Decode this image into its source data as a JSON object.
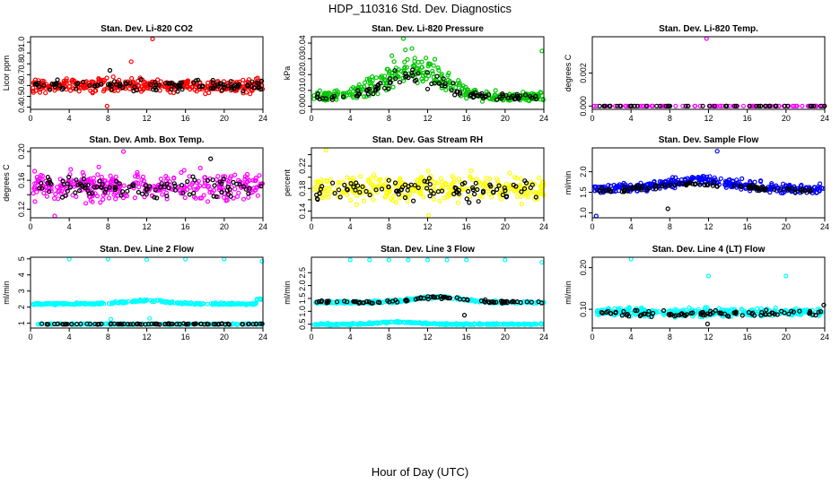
{
  "figure": {
    "title": "HDP_110316  Std. Dev. Diagnostics",
    "xlabel": "Hour of Day (UTC)"
  },
  "chart_data": [
    {
      "type": "scatter",
      "title": "Stan. Dev. Li-820 CO2",
      "ylabel": "Licor ppm",
      "xlim": [
        0,
        24
      ],
      "ylim": [
        0.38,
        1.05
      ],
      "xticks": [
        0,
        4,
        8,
        12,
        16,
        20,
        24
      ],
      "yticks": [
        0.4,
        0.5,
        0.6,
        0.7,
        0.8,
        0.9,
        1.0
      ],
      "ytick_labels": [
        "0.4",
        "0.5",
        "0.6",
        "0.7",
        "0.8",
        "0.9",
        "1.0"
      ],
      "color": "#ff0000",
      "series": [
        {
          "name": "main",
          "color": "#ff0000",
          "n": 360,
          "base": 0.6,
          "spread": 0.06,
          "x": [
            0.2,
            24
          ]
        },
        {
          "name": "hourly",
          "color": "#000000",
          "n": 110,
          "base": 0.6,
          "spread": 0.05,
          "x": [
            0.5,
            24
          ]
        }
      ],
      "outliers": [
        {
          "x": 12.6,
          "y": 1.03,
          "color": "#ff0000"
        },
        {
          "x": 10.4,
          "y": 0.82,
          "color": "#ff0000"
        },
        {
          "x": 7.9,
          "y": 0.41,
          "color": "#ff0000"
        },
        {
          "x": 8.2,
          "y": 0.74,
          "color": "#000000"
        }
      ]
    },
    {
      "type": "scatter",
      "title": "Stan. Dev. Li-820 Pressure",
      "ylabel": "kPa",
      "xlim": [
        0,
        24
      ],
      "ylim": [
        -0.002,
        0.044
      ],
      "xticks": [
        0,
        4,
        8,
        12,
        16,
        20,
        24
      ],
      "yticks": [
        0.0,
        0.01,
        0.02,
        0.03,
        0.04
      ],
      "ytick_labels": [
        "0.00",
        "0.01",
        "0.02",
        "0.03",
        "0.04"
      ],
      "color": "#00c800",
      "series": [
        {
          "name": "main",
          "color": "#00c800",
          "n": 330,
          "profile": "pressure",
          "x": [
            0.2,
            24
          ]
        },
        {
          "name": "hourly",
          "color": "#000000",
          "n": 100,
          "profile": "pressure_low",
          "x": [
            0.5,
            24
          ]
        }
      ],
      "outliers": [
        {
          "x": 9.5,
          "y": 0.043,
          "color": "#00c800"
        },
        {
          "x": 23.8,
          "y": 0.035,
          "color": "#00c800"
        },
        {
          "x": 8.3,
          "y": 0.032,
          "color": "#00c800"
        }
      ]
    },
    {
      "type": "scatter",
      "title": "Stan. Dev. Li-820 Temp.",
      "ylabel": "degrees C",
      "xlim": [
        0,
        24
      ],
      "ylim": [
        -0.0002,
        0.0042
      ],
      "xticks": [
        0,
        4,
        8,
        12,
        16,
        20,
        24
      ],
      "yticks": [
        0.0,
        0.002
      ],
      "ytick_labels": [
        "0.000",
        "0.002"
      ],
      "color": "#ff00ff",
      "series": [
        {
          "name": "main",
          "color": "#ff00ff",
          "n": 80,
          "base": 0.0,
          "spread": 0.0,
          "x": [
            0.3,
            24
          ]
        },
        {
          "name": "hourly",
          "color": "#000000",
          "n": 48,
          "base": 0.0,
          "spread": 0.0,
          "x": [
            0.5,
            24
          ]
        }
      ],
      "outliers": [
        {
          "x": 11.8,
          "y": 0.0041,
          "color": "#ff00ff"
        },
        {
          "x": 0.2,
          "y": 0.0,
          "color": "#ff00ff"
        }
      ]
    },
    {
      "type": "scatter",
      "title": "Stan. Dev. Amb. Box Temp.",
      "ylabel": "degrees C",
      "xlim": [
        0,
        24
      ],
      "ylim": [
        0.108,
        0.205
      ],
      "xticks": [
        0,
        4,
        8,
        12,
        16,
        20,
        24
      ],
      "yticks": [
        0.12,
        0.14,
        0.16,
        0.18,
        0.2
      ],
      "ytick_labels": [
        "0.12",
        "0.16",
        "0.20"
      ],
      "ytick_label_values": [
        0.12,
        0.16,
        0.2
      ],
      "color": "#ff00ff",
      "series": [
        {
          "name": "main",
          "color": "#ff00ff",
          "n": 340,
          "base": 0.152,
          "spread": 0.018,
          "x": [
            0.2,
            24
          ]
        },
        {
          "name": "hourly",
          "color": "#000000",
          "n": 100,
          "base": 0.15,
          "spread": 0.015,
          "x": [
            0.5,
            24
          ]
        }
      ],
      "outliers": [
        {
          "x": 9.6,
          "y": 0.2,
          "color": "#ff00ff"
        },
        {
          "x": 2.5,
          "y": 0.11,
          "color": "#ff00ff"
        },
        {
          "x": 18.6,
          "y": 0.19,
          "color": "#000000"
        }
      ]
    },
    {
      "type": "scatter",
      "title": "Stan. Dev. Gas Stream RH",
      "ylabel": "percent",
      "xlim": [
        0,
        24
      ],
      "ylim": [
        0.128,
        0.252
      ],
      "xticks": [
        0,
        4,
        8,
        12,
        16,
        20,
        24
      ],
      "yticks": [
        0.14,
        0.16,
        0.18,
        0.2,
        0.22,
        0.24
      ],
      "ytick_labels": [
        "0.14",
        "0.18",
        "0.22"
      ],
      "ytick_label_values": [
        0.14,
        0.18,
        0.22
      ],
      "color": "#ffff00",
      "series": [
        {
          "name": "main",
          "color": "#ffff00",
          "n": 330,
          "base": 0.18,
          "spread": 0.022,
          "x": [
            0.2,
            24
          ]
        },
        {
          "name": "hourly",
          "color": "#000000",
          "n": 95,
          "base": 0.178,
          "spread": 0.018,
          "x": [
            0.5,
            24
          ]
        }
      ],
      "outliers": [
        {
          "x": 1.5,
          "y": 0.248,
          "color": "#ffff00"
        },
        {
          "x": 12.1,
          "y": 0.132,
          "color": "#ffff00"
        }
      ]
    },
    {
      "type": "scatter",
      "title": "Stan. Dev. Sample Flow",
      "ylabel": "ml/min",
      "xlim": [
        0,
        24
      ],
      "ylim": [
        0.88,
        2.58
      ],
      "xticks": [
        0,
        4,
        8,
        12,
        16,
        20,
        24
      ],
      "yticks": [
        1.0,
        1.5,
        2.0
      ],
      "ytick_labels": [
        "1.0",
        "1.5",
        "2.0"
      ],
      "color": "#0000ff",
      "series": [
        {
          "name": "main",
          "color": "#0000ff",
          "n": 360,
          "profile": "flow",
          "x": [
            0.2,
            24
          ]
        },
        {
          "name": "hourly",
          "color": "#000000",
          "n": 95,
          "profile": "flow_low",
          "x": [
            0.5,
            24
          ]
        }
      ],
      "outliers": [
        {
          "x": 0.4,
          "y": 0.92,
          "color": "#0000ff"
        },
        {
          "x": 12.9,
          "y": 2.5,
          "color": "#0000ff"
        },
        {
          "x": 7.8,
          "y": 1.1,
          "color": "#000000"
        }
      ]
    },
    {
      "type": "scatter",
      "title": "Stan. Dev. Line 2 Flow",
      "ylabel": "ml/min",
      "xlim": [
        0,
        24
      ],
      "ylim": [
        0.7,
        5.1
      ],
      "xticks": [
        0,
        4,
        8,
        12,
        16,
        20,
        24
      ],
      "yticks": [
        1,
        2,
        3,
        4,
        5
      ],
      "ytick_labels": [
        "1",
        "2",
        "3",
        "4",
        "5"
      ],
      "color": "#00ffff",
      "series": [
        {
          "name": "upper",
          "color": "#00ffff",
          "n": 300,
          "profile": "line2_upper",
          "x": [
            0.3,
            24
          ]
        },
        {
          "name": "lower",
          "color": "#00ffff",
          "n": 220,
          "base": 0.95,
          "spread": 0.04,
          "x": [
            0.3,
            24
          ]
        },
        {
          "name": "hourly",
          "color": "#000000",
          "n": 90,
          "base": 0.95,
          "spread": 0.03,
          "x": [
            0.5,
            24
          ]
        }
      ],
      "outliers": [
        {
          "x": 4.0,
          "y": 5.0,
          "color": "#00ffff"
        },
        {
          "x": 8.0,
          "y": 5.0,
          "color": "#00ffff"
        },
        {
          "x": 12.0,
          "y": 4.95,
          "color": "#00ffff"
        },
        {
          "x": 16.0,
          "y": 5.05,
          "color": "#00ffff"
        },
        {
          "x": 20.0,
          "y": 5.0,
          "color": "#00ffff"
        },
        {
          "x": 23.9,
          "y": 4.85,
          "color": "#00ffff"
        },
        {
          "x": 8.3,
          "y": 1.25,
          "color": "#00ffff"
        },
        {
          "x": 12.3,
          "y": 1.3,
          "color": "#00ffff"
        }
      ]
    },
    {
      "type": "scatter",
      "title": "Stan. Dev. Line 3 Flow",
      "ylabel": "ml/min",
      "xlim": [
        0,
        24
      ],
      "ylim": [
        0.35,
        3.1
      ],
      "xticks": [
        0,
        4,
        8,
        12,
        16,
        20,
        24
      ],
      "yticks": [
        0.5,
        1.0,
        1.5,
        2.0,
        2.5
      ],
      "ytick_labels": [
        "0.5",
        "1.0",
        "1.5",
        "2.0",
        "2.5"
      ],
      "color": "#00ffff",
      "series": [
        {
          "name": "upper",
          "color": "#00ffff",
          "n": 300,
          "profile": "line3_upper",
          "x": [
            0.3,
            24
          ]
        },
        {
          "name": "lower",
          "color": "#00ffff",
          "n": 320,
          "profile": "line3_lower",
          "x": [
            0.3,
            24
          ]
        },
        {
          "name": "hourly",
          "color": "#000000",
          "n": 90,
          "profile": "line3_upper",
          "x": [
            0.5,
            24
          ]
        }
      ],
      "outliers": [
        {
          "x": 4.0,
          "y": 3.0,
          "color": "#00ffff"
        },
        {
          "x": 6.0,
          "y": 3.0,
          "color": "#00ffff"
        },
        {
          "x": 8.0,
          "y": 3.0,
          "color": "#00ffff"
        },
        {
          "x": 10.0,
          "y": 3.0,
          "color": "#00ffff"
        },
        {
          "x": 12.0,
          "y": 3.0,
          "color": "#00ffff"
        },
        {
          "x": 14.0,
          "y": 3.0,
          "color": "#00ffff"
        },
        {
          "x": 16.0,
          "y": 3.0,
          "color": "#00ffff"
        },
        {
          "x": 20.0,
          "y": 3.0,
          "color": "#00ffff"
        },
        {
          "x": 23.8,
          "y": 2.9,
          "color": "#00ffff"
        },
        {
          "x": 15.8,
          "y": 0.85,
          "color": "#000000"
        }
      ]
    },
    {
      "type": "scatter",
      "title": "Stan. Dev. Line 4 (LT) Flow",
      "ylabel": "ml/min",
      "xlim": [
        0,
        24
      ],
      "ylim": [
        0.055,
        0.225
      ],
      "xticks": [
        0,
        4,
        8,
        12,
        16,
        20,
        24
      ],
      "yticks": [
        0.1,
        0.2
      ],
      "ytick_labels": [
        "0.10",
        "0.20"
      ],
      "color": "#00ffff",
      "series": [
        {
          "name": "main",
          "color": "#00ffff",
          "n": 330,
          "base": 0.093,
          "spread": 0.01,
          "x": [
            0.2,
            24
          ]
        },
        {
          "name": "hourly",
          "color": "#000000",
          "n": 90,
          "base": 0.09,
          "spread": 0.009,
          "x": [
            0.5,
            24
          ]
        }
      ],
      "outliers": [
        {
          "x": 4.0,
          "y": 0.222,
          "color": "#00ffff"
        },
        {
          "x": 12.0,
          "y": 0.18,
          "color": "#00ffff"
        },
        {
          "x": 20.0,
          "y": 0.18,
          "color": "#00ffff"
        },
        {
          "x": 11.9,
          "y": 0.065,
          "color": "#000000"
        },
        {
          "x": 23.9,
          "y": 0.11,
          "color": "#000000"
        }
      ]
    }
  ]
}
